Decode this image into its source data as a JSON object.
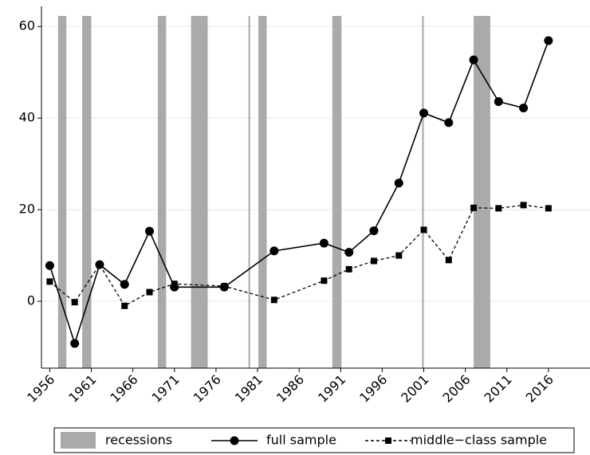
{
  "chart_data": {
    "type": "line",
    "x": [
      1956,
      1959,
      1962,
      1965,
      1968,
      1971,
      1977,
      1983,
      1989,
      1992,
      1995,
      1998,
      2001,
      2004,
      2007,
      2010,
      2013,
      2016
    ],
    "series": [
      {
        "name": "full sample",
        "color": "#000000",
        "style": "solid",
        "marker": "circle",
        "values": [
          7.8,
          -9.2,
          8,
          3.7,
          15.3,
          3.1,
          3.1,
          11,
          12.7,
          10.7,
          15.4,
          25.8,
          41.1,
          39,
          52.7,
          43.6,
          42.2,
          56.9
        ]
      },
      {
        "name": "middle−class sample",
        "color": "#000000",
        "style": "dashed",
        "marker": "square",
        "values": [
          4.3,
          -0.2,
          8,
          -1,
          2,
          3.8,
          3.3,
          0.3,
          4.5,
          7,
          8.8,
          10,
          15.6,
          9,
          20.4,
          20.3,
          21,
          20.3
        ]
      }
    ],
    "shaded_periods": {
      "name": "recessions",
      "color": "#aaaaaa",
      "ranges": [
        [
          1957,
          1958
        ],
        [
          1959.9,
          1961
        ],
        [
          1969,
          1970
        ],
        [
          1973,
          1975
        ],
        [
          1979.9,
          1980.1
        ],
        [
          1981.1,
          1982.1
        ],
        [
          1990,
          1991.1
        ],
        [
          2000.8,
          2001
        ],
        [
          2007,
          2009
        ]
      ]
    },
    "xlim": [
      1955,
      2021
    ],
    "ylim": [
      -14.6,
      62.3
    ],
    "xticks": [
      1956,
      1961,
      1966,
      1971,
      1976,
      1981,
      1986,
      1991,
      1996,
      2001,
      2006,
      2011,
      2016
    ],
    "yticks": [
      0,
      20,
      40,
      60
    ],
    "grid": true,
    "legend": "bottom"
  }
}
